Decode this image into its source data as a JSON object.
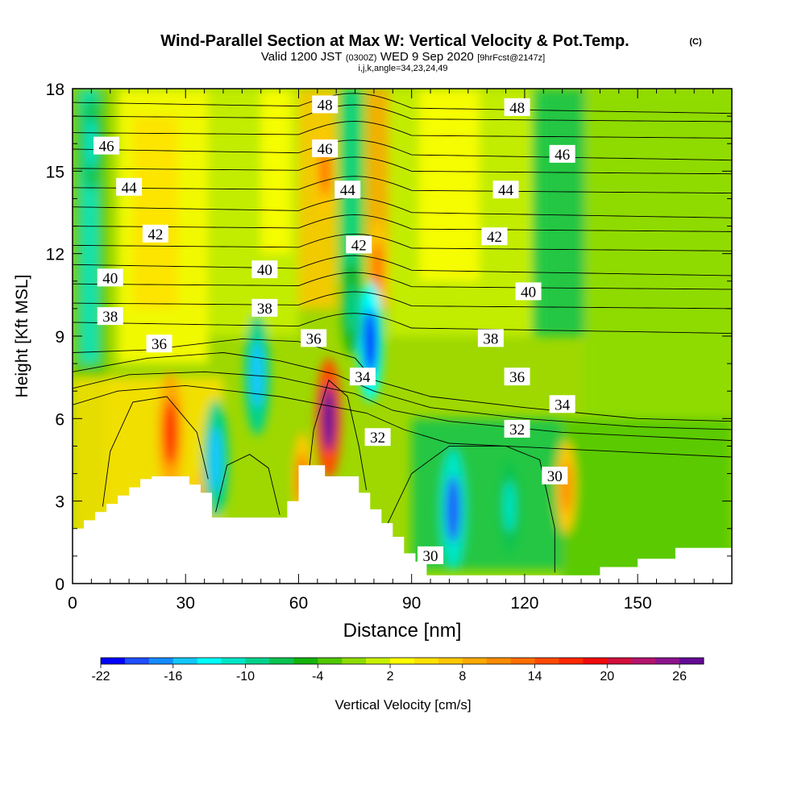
{
  "chart_data": {
    "type": "heatmap",
    "title": "Wind-Parallel Section at Max W: Vertical Velocity & Pot.Temp.",
    "title_mark": "(C)",
    "subtitle": {
      "part1": "Valid 1200 JST",
      "part2": "(0300Z)",
      "part3": "WED 9 Sep 2020",
      "part4": "[9hrFcst@2147z]"
    },
    "subtitle2": "i,j,k,angle=34,23,24,49",
    "xlabel": "Distance [nm]",
    "ylabel": "Height [Kft MSL]",
    "xlim": [
      0,
      175
    ],
    "ylim": [
      0,
      18
    ],
    "x_ticks": [
      0,
      30,
      60,
      90,
      120,
      150
    ],
    "y_ticks": [
      0,
      3,
      6,
      9,
      12,
      15,
      18
    ],
    "colorbar": {
      "label": "Vertical Velocity [cm/s]",
      "min": -22,
      "max": 28,
      "step": 2,
      "tick_labels": [
        "-22",
        "-16",
        "-10",
        "-4",
        "2",
        "8",
        "14",
        "20",
        "26"
      ],
      "colors": [
        "#0000ff",
        "#1f4fff",
        "#148cff",
        "#12c8ff",
        "#00ffff",
        "#00e6c8",
        "#00d28c",
        "#0ac350",
        "#14b40a",
        "#50c800",
        "#8cdc00",
        "#c8f000",
        "#ffff00",
        "#ffe100",
        "#ffc800",
        "#ffaa00",
        "#ff8c00",
        "#ff6e00",
        "#ff4b00",
        "#ff2800",
        "#f00a0a",
        "#d20f3c",
        "#b4146e",
        "#8c148c",
        "#640a96"
      ]
    },
    "updraft_cores": [
      {
        "x": 26,
        "z": 5.5,
        "w": 16
      },
      {
        "x": 68,
        "z": 6.0,
        "w": 26
      },
      {
        "x": 61,
        "z": 3.8,
        "w": 12
      },
      {
        "x": 34,
        "z": 2.5,
        "w": 10
      },
      {
        "x": 81,
        "z": 11.5,
        "w": 12
      },
      {
        "x": 67,
        "z": 15.0,
        "w": 12
      },
      {
        "x": 131,
        "z": 3.5,
        "w": 10
      }
    ],
    "downdraft_cores": [
      {
        "x": 79,
        "z": 8.8,
        "w": -22
      },
      {
        "x": 101,
        "z": 2.7,
        "w": -20
      },
      {
        "x": 116,
        "z": 2.8,
        "w": -12
      },
      {
        "x": 49,
        "z": 7.6,
        "w": -16
      },
      {
        "x": 38,
        "z": 4.5,
        "w": -16
      },
      {
        "x": 5,
        "z": 16.0,
        "w": -12
      },
      {
        "x": 74,
        "z": 10.0,
        "w": -10
      }
    ],
    "theta_contour_labels": [
      {
        "text": "48",
        "x": 67,
        "z": 17.4
      },
      {
        "text": "48",
        "x": 118,
        "z": 17.3
      },
      {
        "text": "46",
        "x": 9,
        "z": 15.9
      },
      {
        "text": "46",
        "x": 67,
        "z": 15.8
      },
      {
        "text": "46",
        "x": 130,
        "z": 15.6
      },
      {
        "text": "44",
        "x": 15,
        "z": 14.4
      },
      {
        "text": "44",
        "x": 73,
        "z": 14.3
      },
      {
        "text": "44",
        "x": 115,
        "z": 14.3
      },
      {
        "text": "42",
        "x": 22,
        "z": 12.7
      },
      {
        "text": "42",
        "x": 76,
        "z": 12.3
      },
      {
        "text": "42",
        "x": 112,
        "z": 12.6
      },
      {
        "text": "40",
        "x": 10,
        "z": 11.1
      },
      {
        "text": "40",
        "x": 51,
        "z": 11.4
      },
      {
        "text": "40",
        "x": 121,
        "z": 10.6
      },
      {
        "text": "38",
        "x": 10,
        "z": 9.7
      },
      {
        "text": "38",
        "x": 51,
        "z": 10.0
      },
      {
        "text": "38",
        "x": 111,
        "z": 8.9
      },
      {
        "text": "36",
        "x": 23,
        "z": 8.7
      },
      {
        "text": "36",
        "x": 64,
        "z": 8.9
      },
      {
        "text": "36",
        "x": 118,
        "z": 7.5
      },
      {
        "text": "34",
        "x": 77,
        "z": 7.5
      },
      {
        "text": "34",
        "x": 130,
        "z": 6.5
      },
      {
        "text": "32",
        "x": 81,
        "z": 5.3
      },
      {
        "text": "32",
        "x": 118,
        "z": 5.6
      },
      {
        "text": "30",
        "x": 128,
        "z": 3.9
      },
      {
        "text": "30",
        "x": 95,
        "z": 1.0
      }
    ]
  }
}
